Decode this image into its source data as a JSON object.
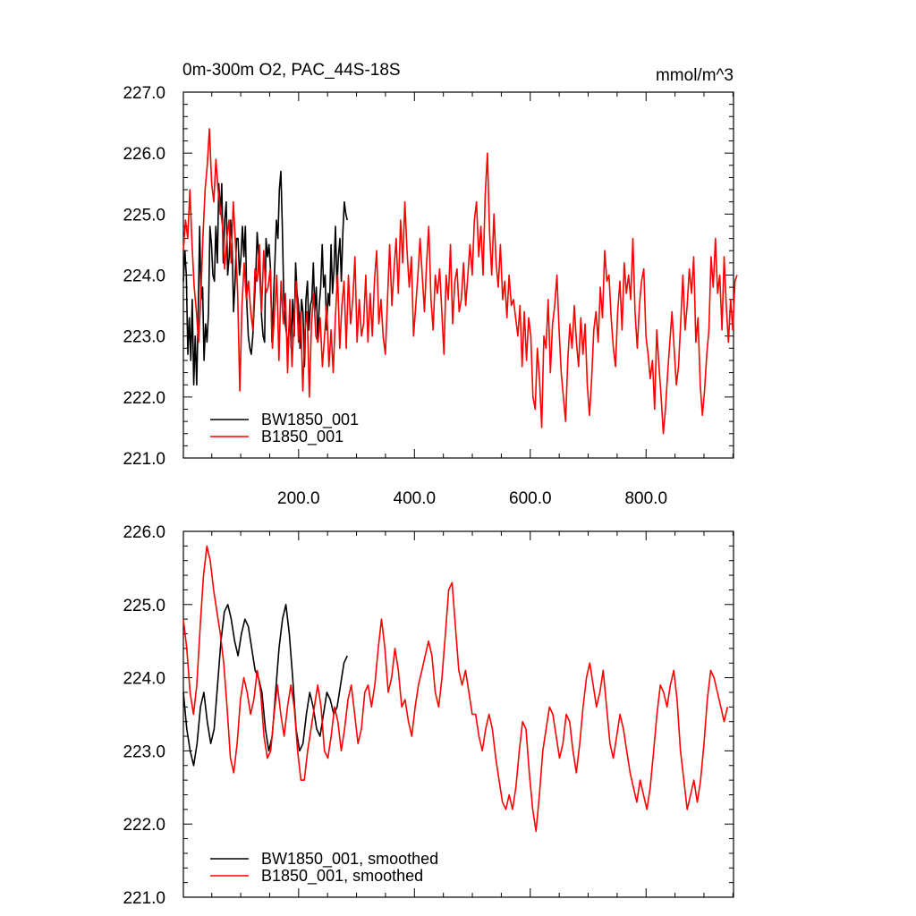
{
  "figure": {
    "title_left": "0m-300m O2, PAC_44S-18S",
    "title_right": "mmol/m^3"
  },
  "chart_data": [
    {
      "type": "line",
      "title": "0m-300m O2, PAC_44S-18S",
      "units": "mmol/m^3",
      "xlim": [
        1,
        951
      ],
      "ylim": [
        221,
        227
      ],
      "x_ticks": [
        200,
        400,
        600,
        800
      ],
      "x_tick_labels": [
        "200.0",
        "400.0",
        "600.0",
        "800.0"
      ],
      "y_ticks": [
        221,
        222,
        223,
        224,
        225,
        226,
        227
      ],
      "y_tick_labels": [
        "221.0",
        "222.0",
        "223.0",
        "224.0",
        "225.0",
        "226.0",
        "227.0"
      ],
      "legend": "bottom-left",
      "series": [
        {
          "name": "BW1850_001",
          "color": "#000000",
          "x_start": 1,
          "values": [
            223.9,
            224.4,
            224.0,
            222.7,
            223.3,
            222.6,
            223.6,
            222.2,
            223.0,
            222.2,
            223.3,
            224.8,
            223.6,
            223.8,
            222.6,
            223.2,
            222.9,
            223.4,
            224.8,
            224.5,
            224.0,
            223.9,
            224.8,
            224.2,
            225.5,
            225.0,
            225.5,
            224.2,
            224.9,
            225.2,
            224.0,
            224.3,
            224.9,
            224.5,
            223.4,
            223.9,
            224.6,
            224.6,
            224.0,
            224.3,
            224.8,
            224.3,
            224.8,
            223.5,
            223.0,
            222.8,
            222.7,
            223.0,
            223.5,
            224.0,
            224.7,
            224.3,
            223.9,
            223.3,
            223.0,
            222.9,
            224.6,
            224.3,
            224.5,
            224.1,
            222.9,
            223.6,
            224.2,
            224.9,
            224.6,
            225.4,
            225.7,
            224.8,
            223.6,
            223.2,
            223.0,
            222.8,
            223.4,
            222.8,
            223.6,
            223.0,
            224.2,
            223.7,
            223.5,
            222.8,
            223.6,
            223.4,
            222.5,
            223.6,
            223.9,
            223.1,
            223.5,
            223.6,
            224.2,
            223.4,
            223.8,
            222.9,
            223.5,
            223.8,
            224.5,
            223.8,
            224.0,
            223.1,
            223.7,
            223.5,
            224.5,
            223.7,
            224.1,
            224.8,
            223.8,
            224.3,
            224.6,
            223.9,
            224.7,
            225.2,
            225.0,
            224.9
          ]
        },
        {
          "name": "B1850_001",
          "color": "#ff0000",
          "x_start": 1,
          "values": [
            224.4,
            224.9,
            224.6,
            225.4,
            224.5,
            223.8,
            223.4,
            222.9,
            223.6,
            224.6,
            225.4,
            225.8,
            226.4,
            225.5,
            225.2,
            225.9,
            225.4,
            225.1,
            224.8,
            224.1,
            224.6,
            224.9,
            224.2,
            225.2,
            224.5,
            223.7,
            222.1,
            223.5,
            224.2,
            223.6,
            223.9,
            223.4,
            223.1,
            224.1,
            223.9,
            224.5,
            223.4,
            224.4,
            223.7,
            223.8,
            224.1,
            222.8,
            223.4,
            224.0,
            222.6,
            223.9,
            223.2,
            223.7,
            222.4,
            223.6,
            222.5,
            223.3,
            223.9,
            222.9,
            223.4,
            222.1,
            223.1,
            223.4,
            222.0,
            223.2,
            223.7,
            223.0,
            222.9,
            223.3,
            222.5,
            223.0,
            223.5,
            222.5,
            223.1,
            222.4,
            223.3,
            224.0,
            222.8,
            223.5,
            223.9,
            222.8,
            224.0,
            223.2,
            223.6,
            224.3,
            222.9,
            223.6,
            223.0,
            223.2,
            224.0,
            222.9,
            223.7,
            223.0,
            223.9,
            224.4,
            223.2,
            223.6,
            223.0,
            222.7,
            223.6,
            224.5,
            223.5,
            224.1,
            224.6,
            223.7,
            224.9,
            224.2,
            225.2,
            224.4,
            223.8,
            224.3,
            223.0,
            223.5,
            224.0,
            224.6,
            224.0,
            223.4,
            224.2,
            224.8,
            223.6,
            223.1,
            224.0,
            223.7,
            224.1,
            223.4,
            222.7,
            224.0,
            223.6,
            224.5,
            223.2,
            223.9,
            224.1,
            223.4,
            223.6,
            224.2,
            223.5,
            224.0,
            224.5,
            224.0,
            224.9,
            225.2,
            224.3,
            224.8,
            224.0,
            225.3,
            226.0,
            224.7,
            224.0,
            225.0,
            224.2,
            223.8,
            224.5,
            223.6,
            223.9,
            223.3,
            224.0,
            223.5,
            223.6,
            223.3,
            223.0,
            223.5,
            222.5,
            223.4,
            222.6,
            223.3,
            223.0,
            222.0,
            221.8,
            222.8,
            222.3,
            221.5,
            223.0,
            222.8,
            223.6,
            222.4,
            223.2,
            223.5,
            224.0,
            223.1,
            222.4,
            222.0,
            221.6,
            222.6,
            223.2,
            222.8,
            223.5,
            222.9,
            222.5,
            223.3,
            222.7,
            223.2,
            222.2,
            221.7,
            222.3,
            223.1,
            223.4,
            222.9,
            223.8,
            223.3,
            224.4,
            223.9,
            224.0,
            223.3,
            222.8,
            222.5,
            223.4,
            223.9,
            223.1,
            224.2,
            223.7,
            224.0,
            223.6,
            224.6,
            223.4,
            222.8,
            223.5,
            223.9,
            224.1,
            223.0,
            222.7,
            222.3,
            222.6,
            221.8,
            223.1,
            222.5,
            222.0,
            221.4,
            221.8,
            222.4,
            222.9,
            223.4,
            222.8,
            222.2,
            222.5,
            223.2,
            224.0,
            223.1,
            223.5,
            224.1,
            223.7,
            224.3,
            222.9,
            223.3,
            222.2,
            221.7,
            222.1,
            222.7,
            223.1,
            224.3,
            223.8,
            224.6,
            223.7,
            224.0,
            223.1,
            224.3,
            223.5,
            222.9,
            223.6,
            223.1,
            223.9,
            224.0
          ]
        }
      ]
    },
    {
      "type": "line",
      "xlim": [
        1,
        951
      ],
      "ylim": [
        221,
        226
      ],
      "y_ticks": [
        221,
        222,
        223,
        224,
        225,
        226
      ],
      "y_tick_labels": [
        "221.0",
        "222.0",
        "223.0",
        "224.0",
        "225.0",
        "226.0"
      ],
      "legend": "bottom-left",
      "series": [
        {
          "name": "BW1850_001, smoothed",
          "color": "#000000",
          "x_start": 1,
          "values": [
            223.8,
            223.3,
            223.0,
            222.8,
            223.1,
            223.6,
            223.8,
            223.4,
            223.1,
            223.3,
            223.9,
            224.5,
            224.9,
            225.0,
            224.8,
            224.5,
            224.3,
            224.6,
            224.8,
            224.7,
            224.4,
            224.1,
            224.0,
            223.8,
            223.3,
            223.0,
            223.2,
            223.8,
            224.4,
            224.8,
            225.0,
            224.6,
            224.0,
            223.3,
            223.0,
            223.1,
            223.5,
            223.8,
            223.6,
            223.3,
            223.2,
            223.5,
            223.8,
            223.7,
            223.5,
            223.6,
            223.9,
            224.2,
            224.3
          ]
        },
        {
          "name": "B1850_001, smoothed",
          "color": "#ff0000",
          "x_start": 1,
          "values": [
            224.8,
            224.4,
            223.8,
            223.5,
            223.9,
            224.7,
            225.4,
            225.8,
            225.6,
            225.2,
            224.9,
            224.6,
            224.2,
            223.6,
            222.9,
            222.7,
            223.1,
            223.7,
            224.0,
            223.8,
            223.5,
            223.7,
            224.1,
            223.8,
            223.2,
            222.9,
            223.0,
            223.5,
            223.9,
            223.5,
            223.2,
            223.6,
            223.9,
            223.6,
            223.0,
            222.6,
            222.6,
            223.0,
            223.3,
            223.6,
            223.9,
            223.6,
            223.0,
            222.9,
            223.2,
            223.6,
            223.4,
            223.0,
            223.3,
            223.7,
            223.9,
            223.5,
            223.1,
            223.3,
            223.8,
            223.9,
            223.6,
            223.9,
            224.4,
            224.8,
            224.4,
            223.8,
            224.0,
            224.4,
            224.1,
            223.6,
            223.7,
            223.4,
            223.2,
            223.6,
            223.9,
            224.1,
            224.3,
            224.5,
            224.3,
            223.8,
            223.6,
            224.0,
            224.6,
            225.2,
            225.3,
            224.7,
            224.1,
            223.9,
            224.1,
            223.8,
            223.5,
            223.5,
            223.2,
            223.0,
            223.3,
            223.5,
            223.3,
            222.9,
            222.6,
            222.3,
            222.2,
            222.4,
            222.2,
            222.5,
            223.0,
            223.4,
            223.3,
            222.7,
            222.2,
            221.9,
            222.4,
            223.0,
            223.3,
            223.6,
            223.5,
            223.2,
            222.9,
            223.1,
            223.5,
            223.4,
            223.0,
            222.7,
            223.1,
            223.6,
            224.0,
            224.2,
            223.9,
            223.6,
            223.8,
            224.1,
            223.6,
            223.1,
            222.9,
            223.2,
            223.5,
            223.3,
            223.0,
            222.7,
            222.5,
            222.3,
            222.6,
            222.4,
            222.2,
            222.5,
            223.0,
            223.5,
            223.9,
            223.8,
            223.6,
            223.9,
            224.1,
            223.7,
            223.0,
            222.6,
            222.2,
            222.4,
            222.6,
            222.3,
            222.6,
            223.1,
            223.7,
            224.1,
            224.0,
            223.8,
            223.6,
            223.4,
            223.6
          ]
        }
      ]
    }
  ]
}
